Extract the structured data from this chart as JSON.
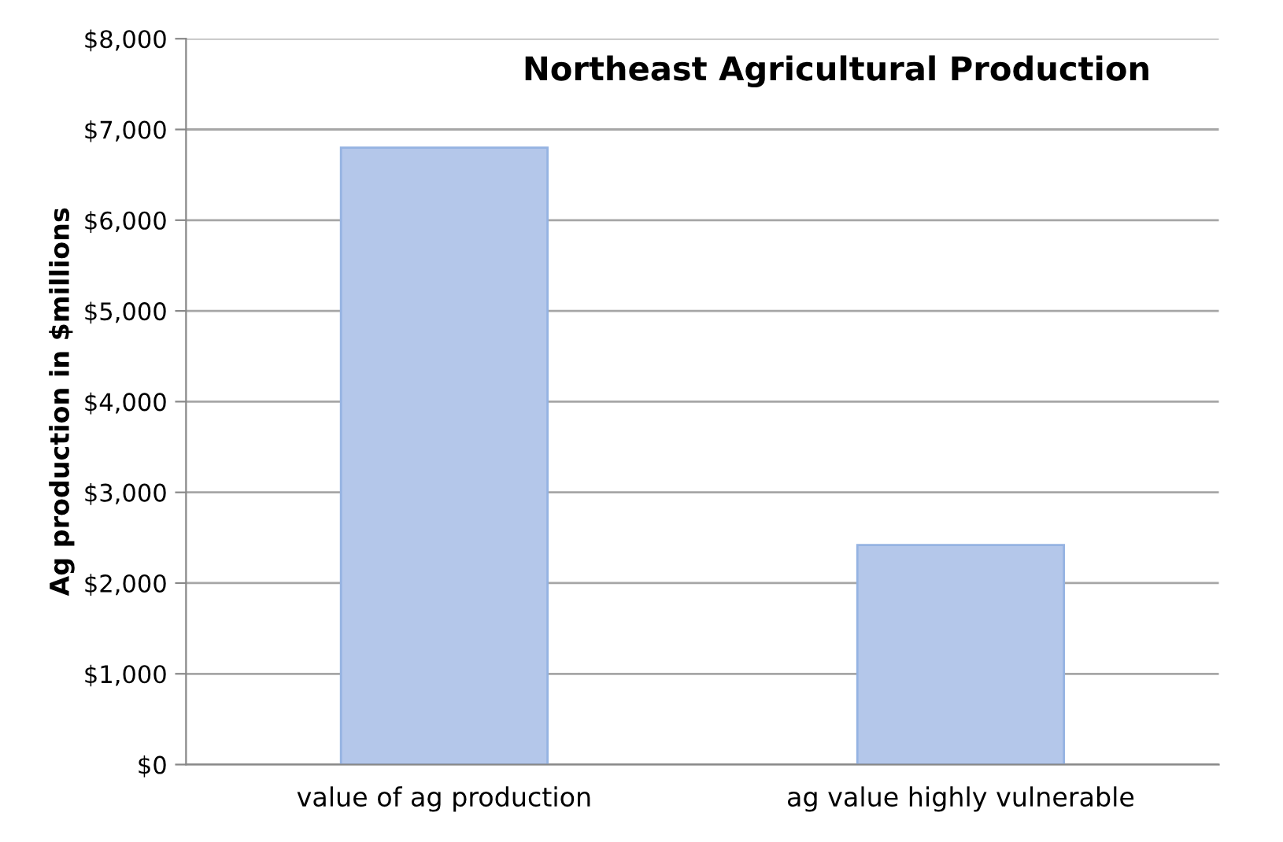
{
  "chart_data": {
    "type": "bar",
    "title": "Northeast Agricultural Production",
    "ylabel": "Ag production in $millions",
    "categories": [
      "value of ag production",
      "ag value highly vulnerable"
    ],
    "values": [
      6800,
      2420
    ],
    "color": "#b4c7ea",
    "ylim": [
      0,
      8000
    ],
    "yticks": [
      {
        "value": 0,
        "label": "$0"
      },
      {
        "value": 1000,
        "label": "$1,000"
      },
      {
        "value": 2000,
        "label": "$2,000"
      },
      {
        "value": 3000,
        "label": "$3,000"
      },
      {
        "value": 4000,
        "label": "$4,000"
      },
      {
        "value": 5000,
        "label": "$5,000"
      },
      {
        "value": 6000,
        "label": "$6,000"
      },
      {
        "value": 7000,
        "label": "$7,000"
      },
      {
        "value": 8000,
        "label": "$8,000"
      }
    ],
    "grid": "y",
    "legend": false
  }
}
